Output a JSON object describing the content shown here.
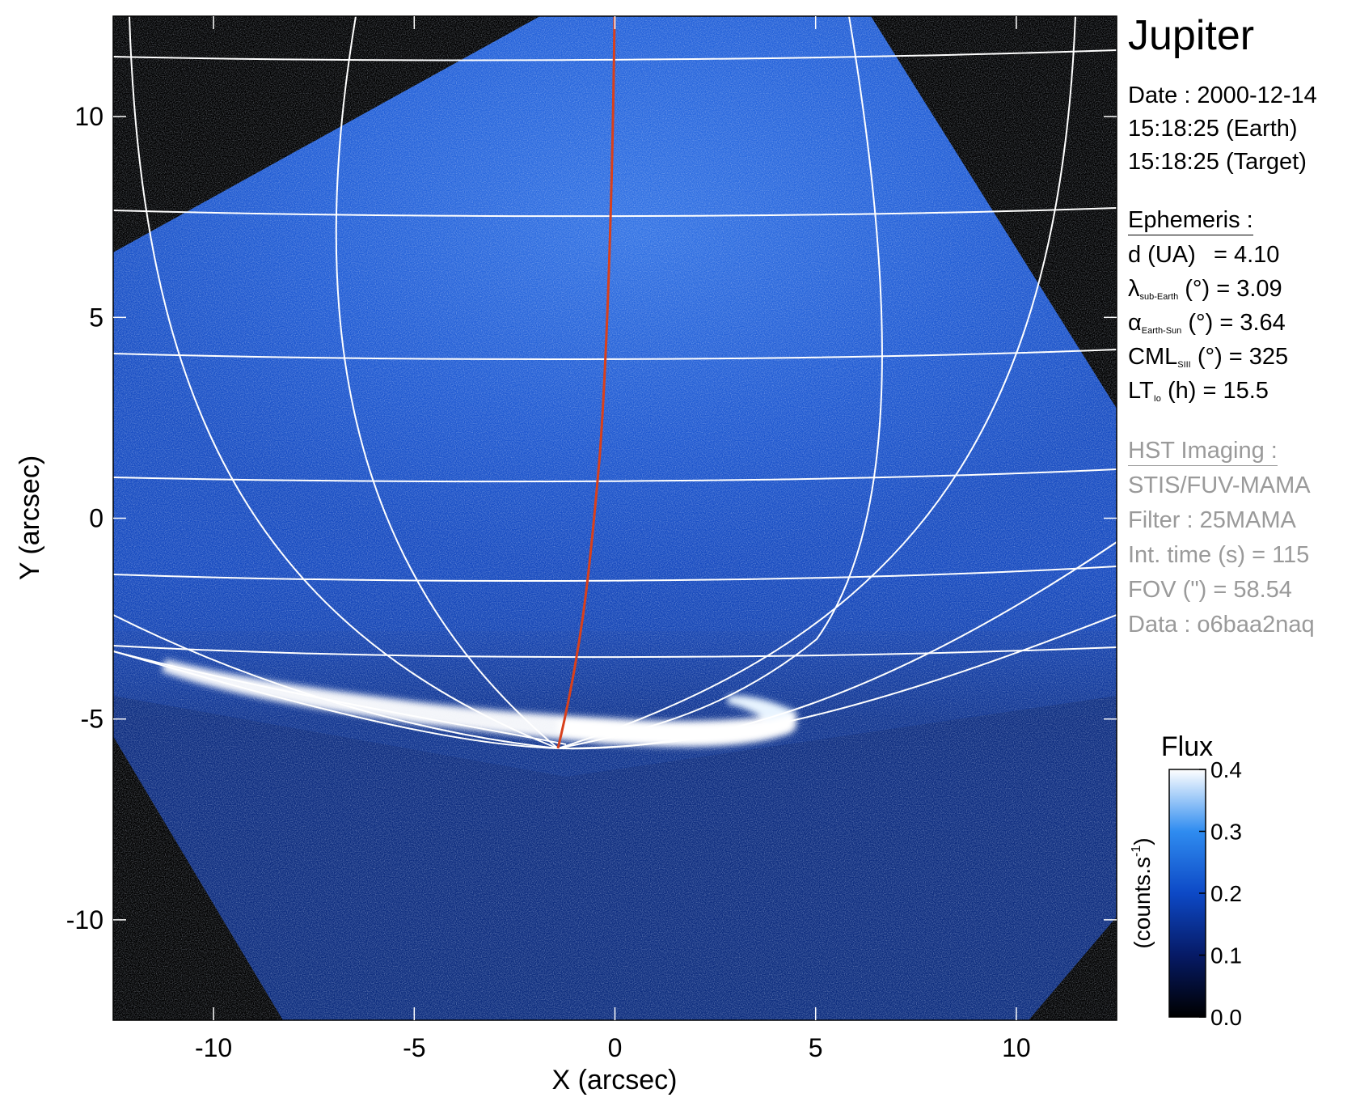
{
  "title": "Jupiter",
  "observation": {
    "date": "Date : 2000-12-14",
    "time_earth": "15:18:25 (Earth)",
    "time_target": "15:18:25 (Target)"
  },
  "ephemeris": {
    "header": "Ephemeris :",
    "distance_label": "d (UA)",
    "distance_value": "= 4.10",
    "lambda_symbol": "λ",
    "lambda_sub": "sub-Earth",
    "lambda_rest": "(°) = 3.09",
    "alpha_symbol": "α",
    "alpha_sub": "Earth-Sun",
    "alpha_rest": "(°) = 3.64",
    "cml_symbol": "CML",
    "cml_sub": "SIII",
    "cml_rest": "(°) = 325",
    "lt_symbol": "LT",
    "lt_sub": "Io",
    "lt_rest": "(h) = 15.5"
  },
  "hst_imaging": {
    "header": "HST Imaging :",
    "instrument": "STIS/FUV-MAMA",
    "filter": "Filter : 25MAMA",
    "int_time": "Int. time (s) = 115",
    "fov": "FOV (\") = 58.54",
    "data_id": "Data : o6baa2naq"
  },
  "axes": {
    "xlabel": "X (arcsec)",
    "ylabel": "Y (arcsec)",
    "x_ticks": [
      "-10",
      "-5",
      "0",
      "5",
      "10"
    ],
    "y_ticks": [
      "10",
      "5",
      "0",
      "-5",
      "-10"
    ],
    "x_range": [
      -12.5,
      12.5
    ],
    "y_range": [
      -12.5,
      12.5
    ]
  },
  "colorbar": {
    "title": "Flux",
    "unit_base": "(counts.s",
    "unit_sup": "-1",
    "unit_end": ")",
    "ticks": [
      "0.4",
      "0.3",
      "0.2",
      "0.1",
      "0.0"
    ],
    "range": [
      0.0,
      0.4
    ],
    "colors": [
      "#000000",
      "#061a66",
      "#0d49c6",
      "#2f8cf0",
      "#ffffff"
    ]
  },
  "colors": {
    "background": "#000000",
    "image_blue": "#1c55d2",
    "grid": "#ffffff",
    "meridian": "#d8401c",
    "text_grey": "#9a9a9a"
  }
}
